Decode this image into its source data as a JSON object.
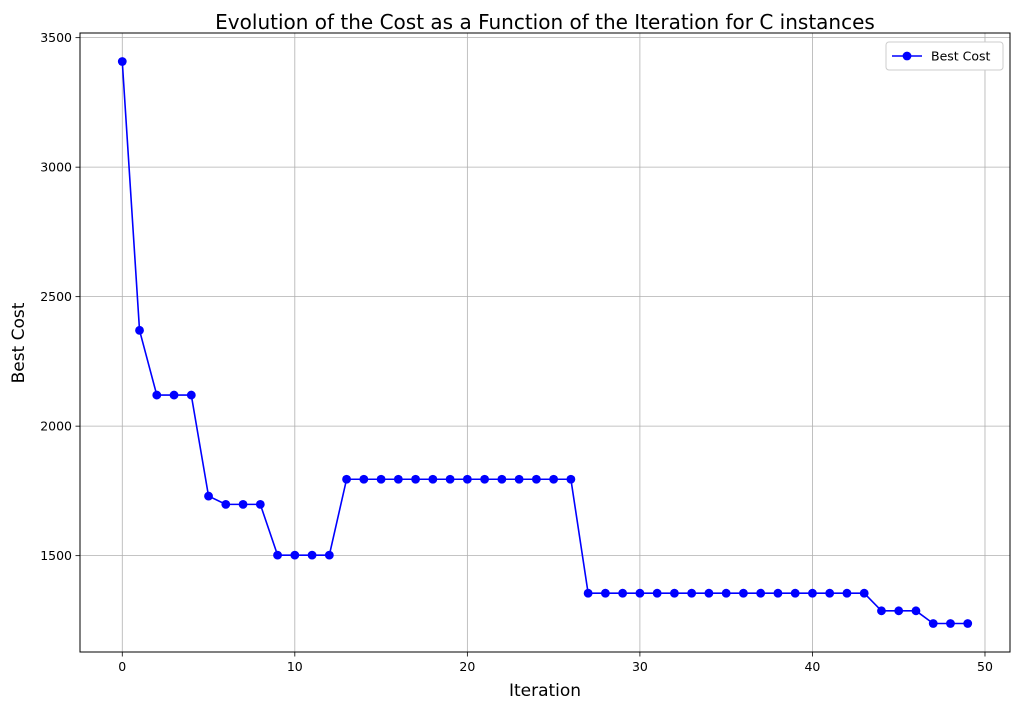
{
  "chart_data": {
    "type": "line",
    "title": "Evolution of the Cost as a Function of the Iteration for C instances",
    "xlabel": "Iteration",
    "ylabel": "Best Cost",
    "xlim": [
      -2.45,
      51.45
    ],
    "ylim": [
      1128,
      3518
    ],
    "xticks": [
      0,
      10,
      20,
      30,
      40,
      50
    ],
    "yticks": [
      1500,
      2000,
      2500,
      3000,
      3500
    ],
    "grid": true,
    "legend_position": "top-right",
    "series": [
      {
        "name": "Best Cost",
        "color": "#0000ff",
        "marker": "circle",
        "x": [
          0,
          1,
          2,
          3,
          4,
          5,
          6,
          7,
          8,
          9,
          10,
          11,
          12,
          13,
          14,
          15,
          16,
          17,
          18,
          19,
          20,
          21,
          22,
          23,
          24,
          25,
          26,
          27,
          28,
          29,
          30,
          31,
          32,
          33,
          34,
          35,
          36,
          37,
          38,
          39,
          40,
          41,
          42,
          43,
          44,
          45,
          46,
          47,
          48,
          49
        ],
        "values": [
          3408,
          2370,
          2120,
          2120,
          2120,
          1730,
          1698,
          1698,
          1698,
          1502,
          1502,
          1502,
          1502,
          1795,
          1795,
          1795,
          1795,
          1795,
          1795,
          1795,
          1795,
          1795,
          1795,
          1795,
          1795,
          1795,
          1795,
          1355,
          1355,
          1355,
          1355,
          1355,
          1355,
          1355,
          1355,
          1355,
          1355,
          1355,
          1355,
          1355,
          1355,
          1355,
          1355,
          1355,
          1287,
          1287,
          1287,
          1238,
          1238,
          1238
        ]
      }
    ]
  }
}
